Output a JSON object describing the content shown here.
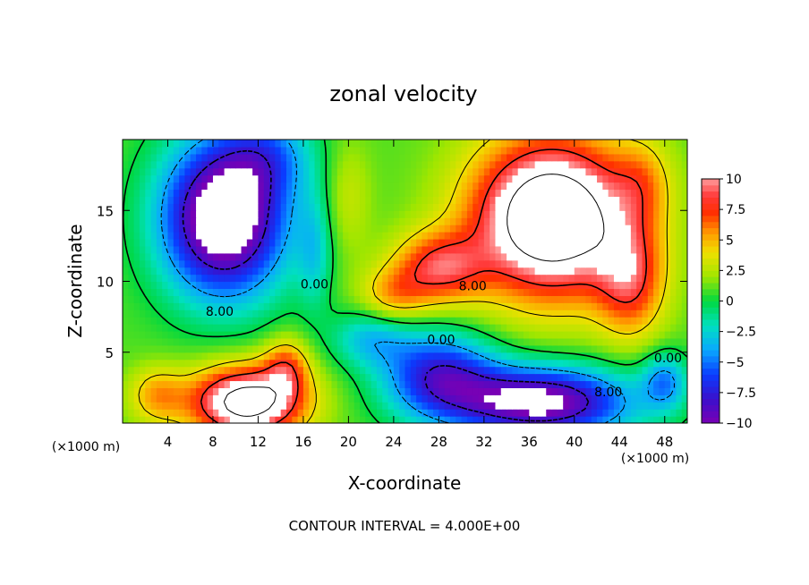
{
  "chart_data": {
    "type": "heatmap",
    "title": "zonal velocity",
    "xlabel": "X-coordinate",
    "ylabel": "Z-coordinate",
    "x_unit_label": "(×1000 m)",
    "z_unit_label": "(×1000 m)",
    "xlim": [
      0,
      50
    ],
    "ylim": [
      0,
      20
    ],
    "x_ticks": [
      4,
      8,
      12,
      16,
      20,
      24,
      28,
      32,
      36,
      40,
      44,
      48
    ],
    "y_ticks": [
      5,
      10,
      15
    ],
    "footer": "CONTOUR INTERVAL = 4.000E+00",
    "colorbar": {
      "ticks": [
        10,
        7.5,
        5,
        2.5,
        0,
        -2.5,
        -5,
        -7.5,
        -10
      ],
      "tick_labels": [
        "10",
        "7.5",
        "5",
        "2.5",
        "0",
        "−2.5",
        "−5",
        "−7.5",
        "−10"
      ],
      "range": [
        -10,
        10
      ],
      "colormap": "rainbow (purple → blue → cyan → green → yellow → orange → red → pink)",
      "over_color": "#ffffff"
    },
    "contour_interval": 4,
    "contour_labels": [
      {
        "text": "8.00",
        "x": 8.6,
        "z": 7.9
      },
      {
        "text": "0.00",
        "x": 17.0,
        "z": 9.8
      },
      {
        "text": "8.00",
        "x": 31.0,
        "z": 9.7
      },
      {
        "text": "0.00",
        "x": 28.2,
        "z": 5.9
      },
      {
        "text": "8.00",
        "x": 43.0,
        "z": 2.2
      },
      {
        "text": "0.00",
        "x": 48.3,
        "z": 4.6
      }
    ],
    "features": [
      {
        "name": "strong negative jet",
        "center_x": 9,
        "center_z": 14,
        "value": "< -10"
      },
      {
        "name": "strong positive core",
        "center_x": 38,
        "center_z": 14.5,
        "value": "> 10"
      },
      {
        "name": "positive surface core",
        "center_x": 11,
        "center_z": 1,
        "value": "> 10"
      },
      {
        "name": "negative surface core",
        "center_x": 37,
        "center_z": 1.5,
        "value": "< -10"
      }
    ]
  },
  "colors": {
    "over": "#ffffff",
    "under": "#ffffff"
  }
}
